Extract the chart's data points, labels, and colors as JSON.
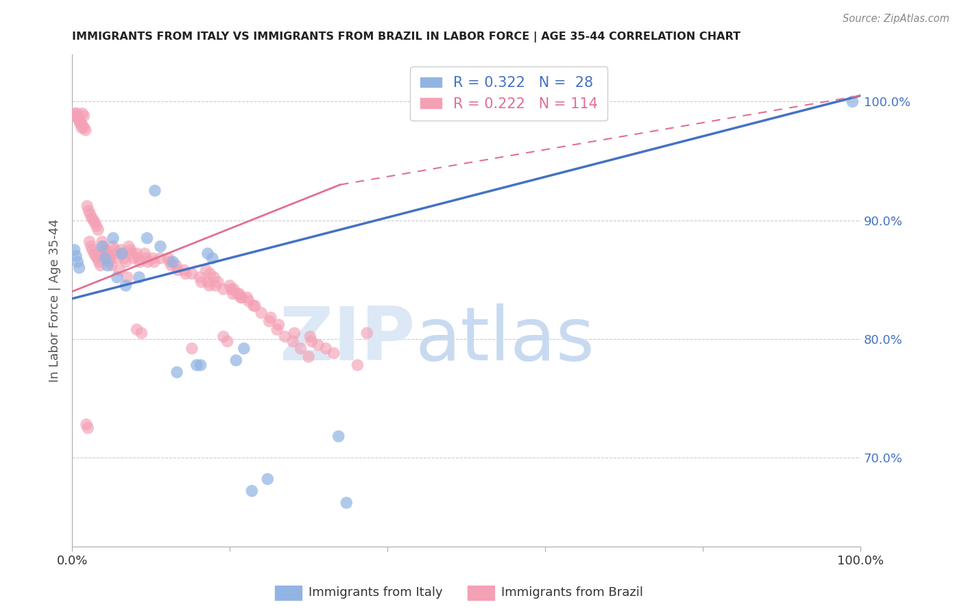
{
  "title": "IMMIGRANTS FROM ITALY VS IMMIGRANTS FROM BRAZIL IN LABOR FORCE | AGE 35-44 CORRELATION CHART",
  "source": "Source: ZipAtlas.com",
  "ylabel": "In Labor Force | Age 35-44",
  "xlim": [
    0.0,
    1.0
  ],
  "ylim": [
    0.625,
    1.04
  ],
  "italy_R": 0.322,
  "italy_N": 28,
  "brazil_R": 0.222,
  "brazil_N": 114,
  "italy_color": "#92b4e3",
  "brazil_color": "#f4a0b5",
  "italy_line_color": "#4472c4",
  "brazil_line_color": "#e07090",
  "legend_italy_label": "Immigrants from Italy",
  "legend_brazil_label": "Immigrants from Brazil",
  "ytick_labels": [
    "100.0%",
    "90.0%",
    "80.0%",
    "70.0%"
  ],
  "ytick_values": [
    1.0,
    0.9,
    0.8,
    0.7
  ],
  "italy_x": [
    0.003,
    0.005,
    0.007,
    0.009,
    0.038,
    0.042,
    0.045,
    0.052,
    0.057,
    0.063,
    0.068,
    0.085,
    0.095,
    0.105,
    0.112,
    0.128,
    0.133,
    0.158,
    0.163,
    0.172,
    0.178,
    0.208,
    0.218,
    0.228,
    0.248,
    0.338,
    0.348,
    0.99
  ],
  "italy_y": [
    0.875,
    0.87,
    0.865,
    0.86,
    0.878,
    0.868,
    0.862,
    0.885,
    0.852,
    0.872,
    0.845,
    0.852,
    0.885,
    0.925,
    0.878,
    0.865,
    0.772,
    0.778,
    0.778,
    0.872,
    0.868,
    0.782,
    0.792,
    0.672,
    0.682,
    0.718,
    0.662,
    1.0
  ],
  "brazil_x": [
    0.003,
    0.005,
    0.007,
    0.009,
    0.011,
    0.013,
    0.015,
    0.017,
    0.013,
    0.015,
    0.019,
    0.021,
    0.023,
    0.025,
    0.027,
    0.029,
    0.031,
    0.033,
    0.022,
    0.024,
    0.026,
    0.028,
    0.03,
    0.032,
    0.034,
    0.036,
    0.038,
    0.04,
    0.042,
    0.044,
    0.046,
    0.048,
    0.041,
    0.043,
    0.045,
    0.047,
    0.052,
    0.054,
    0.056,
    0.058,
    0.062,
    0.064,
    0.066,
    0.068,
    0.072,
    0.074,
    0.076,
    0.078,
    0.082,
    0.084,
    0.086,
    0.092,
    0.094,
    0.096,
    0.102,
    0.104,
    0.112,
    0.122,
    0.124,
    0.126,
    0.132,
    0.134,
    0.142,
    0.144,
    0.152,
    0.162,
    0.164,
    0.172,
    0.174,
    0.182,
    0.192,
    0.202,
    0.204,
    0.212,
    0.214,
    0.222,
    0.224,
    0.232,
    0.252,
    0.262,
    0.282,
    0.302,
    0.304,
    0.312,
    0.322,
    0.332,
    0.362,
    0.374,
    0.192,
    0.197,
    0.152,
    0.082,
    0.088,
    0.018,
    0.02,
    0.006,
    0.008,
    0.01,
    0.012,
    0.17,
    0.175,
    0.18,
    0.185,
    0.2,
    0.205,
    0.21,
    0.215,
    0.23,
    0.24,
    0.25,
    0.26,
    0.27,
    0.28,
    0.29,
    0.3,
    0.05,
    0.06,
    0.07
  ],
  "brazil_y": [
    0.99,
    0.988,
    0.986,
    0.984,
    0.982,
    0.98,
    0.978,
    0.976,
    0.99,
    0.988,
    0.912,
    0.908,
    0.905,
    0.902,
    0.9,
    0.898,
    0.895,
    0.892,
    0.882,
    0.878,
    0.875,
    0.872,
    0.87,
    0.868,
    0.865,
    0.862,
    0.882,
    0.878,
    0.875,
    0.872,
    0.87,
    0.868,
    0.875,
    0.872,
    0.868,
    0.865,
    0.878,
    0.875,
    0.872,
    0.868,
    0.875,
    0.872,
    0.868,
    0.865,
    0.878,
    0.875,
    0.872,
    0.868,
    0.872,
    0.868,
    0.865,
    0.872,
    0.868,
    0.865,
    0.868,
    0.865,
    0.868,
    0.868,
    0.865,
    0.862,
    0.862,
    0.858,
    0.858,
    0.855,
    0.855,
    0.852,
    0.848,
    0.848,
    0.845,
    0.845,
    0.842,
    0.842,
    0.838,
    0.838,
    0.835,
    0.835,
    0.832,
    0.828,
    0.818,
    0.812,
    0.805,
    0.802,
    0.798,
    0.795,
    0.792,
    0.788,
    0.778,
    0.805,
    0.802,
    0.798,
    0.792,
    0.808,
    0.805,
    0.728,
    0.725,
    0.99,
    0.986,
    0.982,
    0.978,
    0.858,
    0.855,
    0.852,
    0.848,
    0.845,
    0.842,
    0.838,
    0.835,
    0.828,
    0.822,
    0.815,
    0.808,
    0.802,
    0.798,
    0.792,
    0.785,
    0.862,
    0.858,
    0.852
  ],
  "italy_line_x0": 0.0,
  "italy_line_x1": 1.0,
  "italy_line_y0": 0.834,
  "italy_line_y1": 1.005,
  "brazil_line_solid_x0": 0.0,
  "brazil_line_solid_x1": 0.34,
  "brazil_line_y0": 0.84,
  "brazil_line_y1": 0.93,
  "brazil_line_dash_x1": 1.0,
  "brazil_line_dash_y1": 1.005
}
